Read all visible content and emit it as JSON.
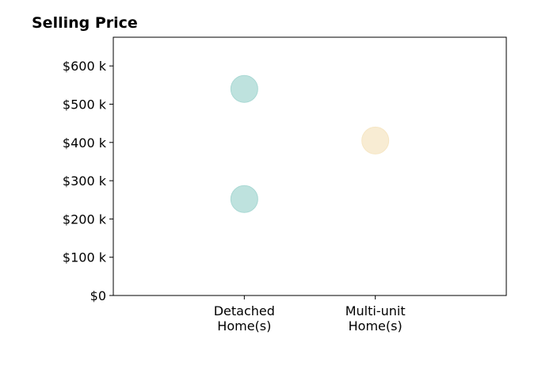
{
  "chart_data": {
    "type": "scatter",
    "title": "Selling Price",
    "xlabel": "",
    "ylabel": "",
    "categories": [
      "Detached\nHome(s)",
      "Multi-unit\nHome(s)"
    ],
    "xlim": [
      0,
      3
    ],
    "ylim": [
      0,
      675000
    ],
    "yticks": [
      0,
      100000,
      200000,
      300000,
      400000,
      500000,
      600000
    ],
    "ytick_labels": [
      "$0",
      "$100 k",
      "$200 k",
      "$300 k",
      "$400 k",
      "$500 k",
      "$600 k"
    ],
    "grid": false,
    "legend": "none",
    "points": [
      {
        "category": "Detached\nHome(s)",
        "x": 1,
        "y": 540000,
        "color": "#a8d8d3"
      },
      {
        "category": "Detached\nHome(s)",
        "x": 1,
        "y": 252000,
        "color": "#a8d8d3"
      },
      {
        "category": "Multi-unit\nHome(s)",
        "x": 2,
        "y": 405000,
        "color": "#f6e6c4"
      }
    ]
  }
}
